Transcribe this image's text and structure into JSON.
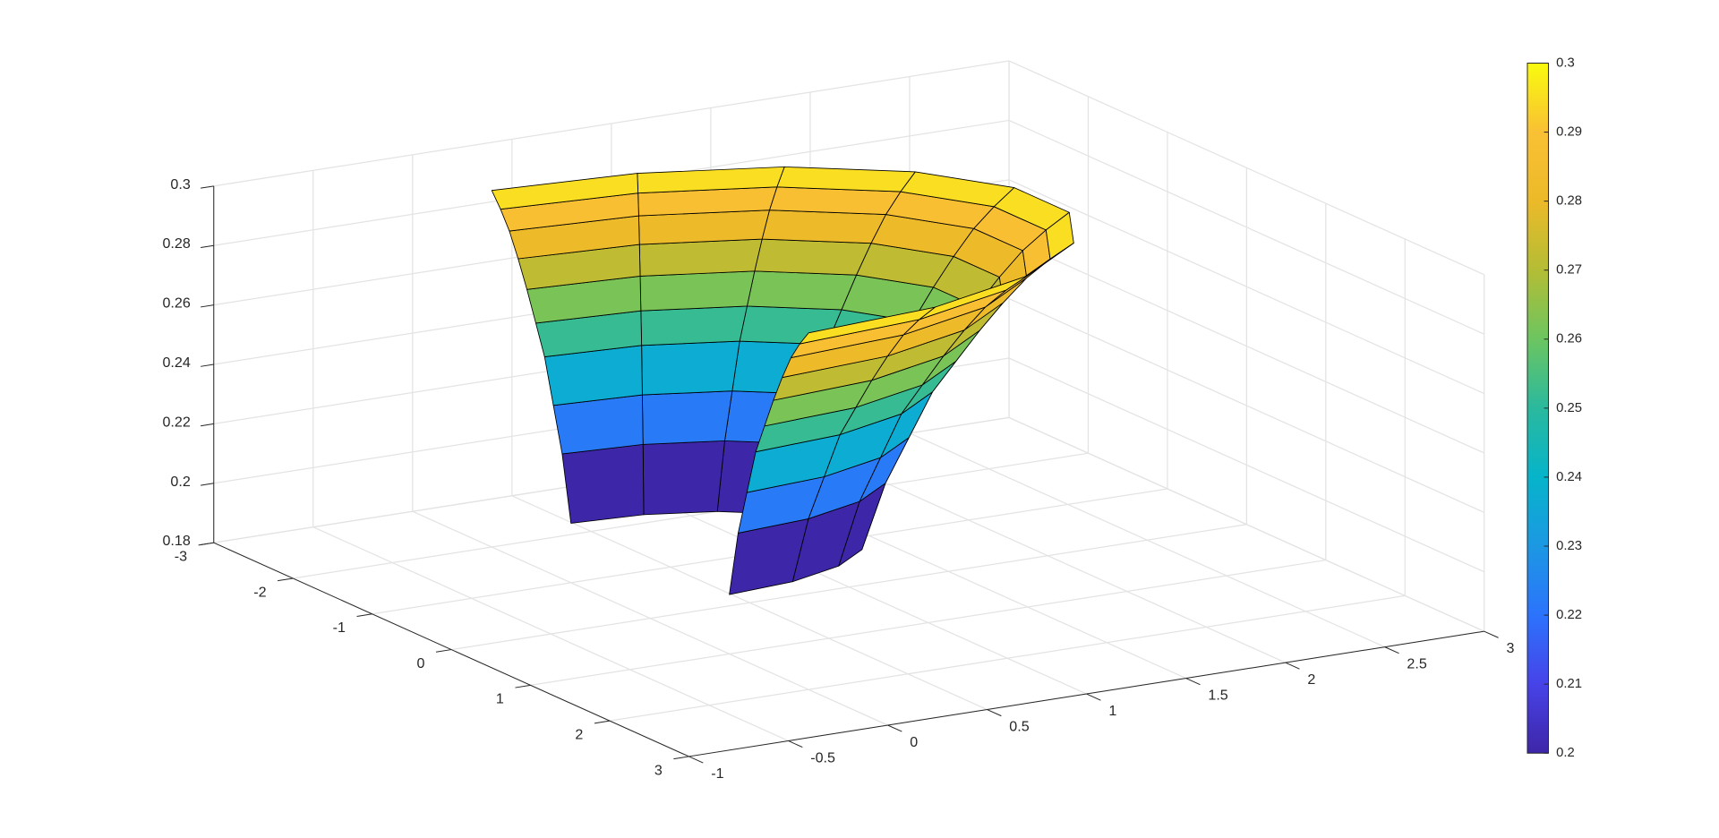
{
  "chart_data": {
    "type": "surface3d",
    "xlim": [
      -1,
      3
    ],
    "xticks": [
      -1,
      -0.5,
      0,
      0.5,
      1,
      1.5,
      2,
      2.5,
      3
    ],
    "ylim": [
      -3,
      3
    ],
    "yticks": [
      -3,
      -2,
      -1,
      0,
      1,
      2,
      3
    ],
    "zlim": [
      0.18,
      0.3
    ],
    "zticks": [
      0.18,
      0.2,
      0.22,
      0.24,
      0.26,
      0.28,
      0.3
    ],
    "grid": true,
    "surface": {
      "theta_deg": [
        -90,
        -70,
        -50,
        -30,
        -10,
        10,
        30,
        50,
        70,
        90
      ],
      "r": [
        1,
        1.111,
        1.222,
        1.333,
        1.444,
        1.556,
        1.667,
        1.778,
        1.889,
        2
      ],
      "z": [
        0.2,
        0.222,
        0.237,
        0.252,
        0.262,
        0.272,
        0.281,
        0.289,
        0.295,
        0.3
      ],
      "edge_color": "#000000"
    },
    "colorbar": {
      "clim": [
        0.2,
        0.3
      ],
      "ticks": [
        0.2,
        0.21,
        0.22,
        0.23,
        0.24,
        0.25,
        0.26,
        0.27,
        0.28,
        0.29,
        0.3
      ]
    },
    "colormap": [
      "#3e26a8",
      "#4743e8",
      "#2c73fc",
      "#1c98e3",
      "#06b4ca",
      "#2ab99e",
      "#6cc560",
      "#b4bd35",
      "#ecba29",
      "#f9c034",
      "#f9fb0e"
    ]
  }
}
